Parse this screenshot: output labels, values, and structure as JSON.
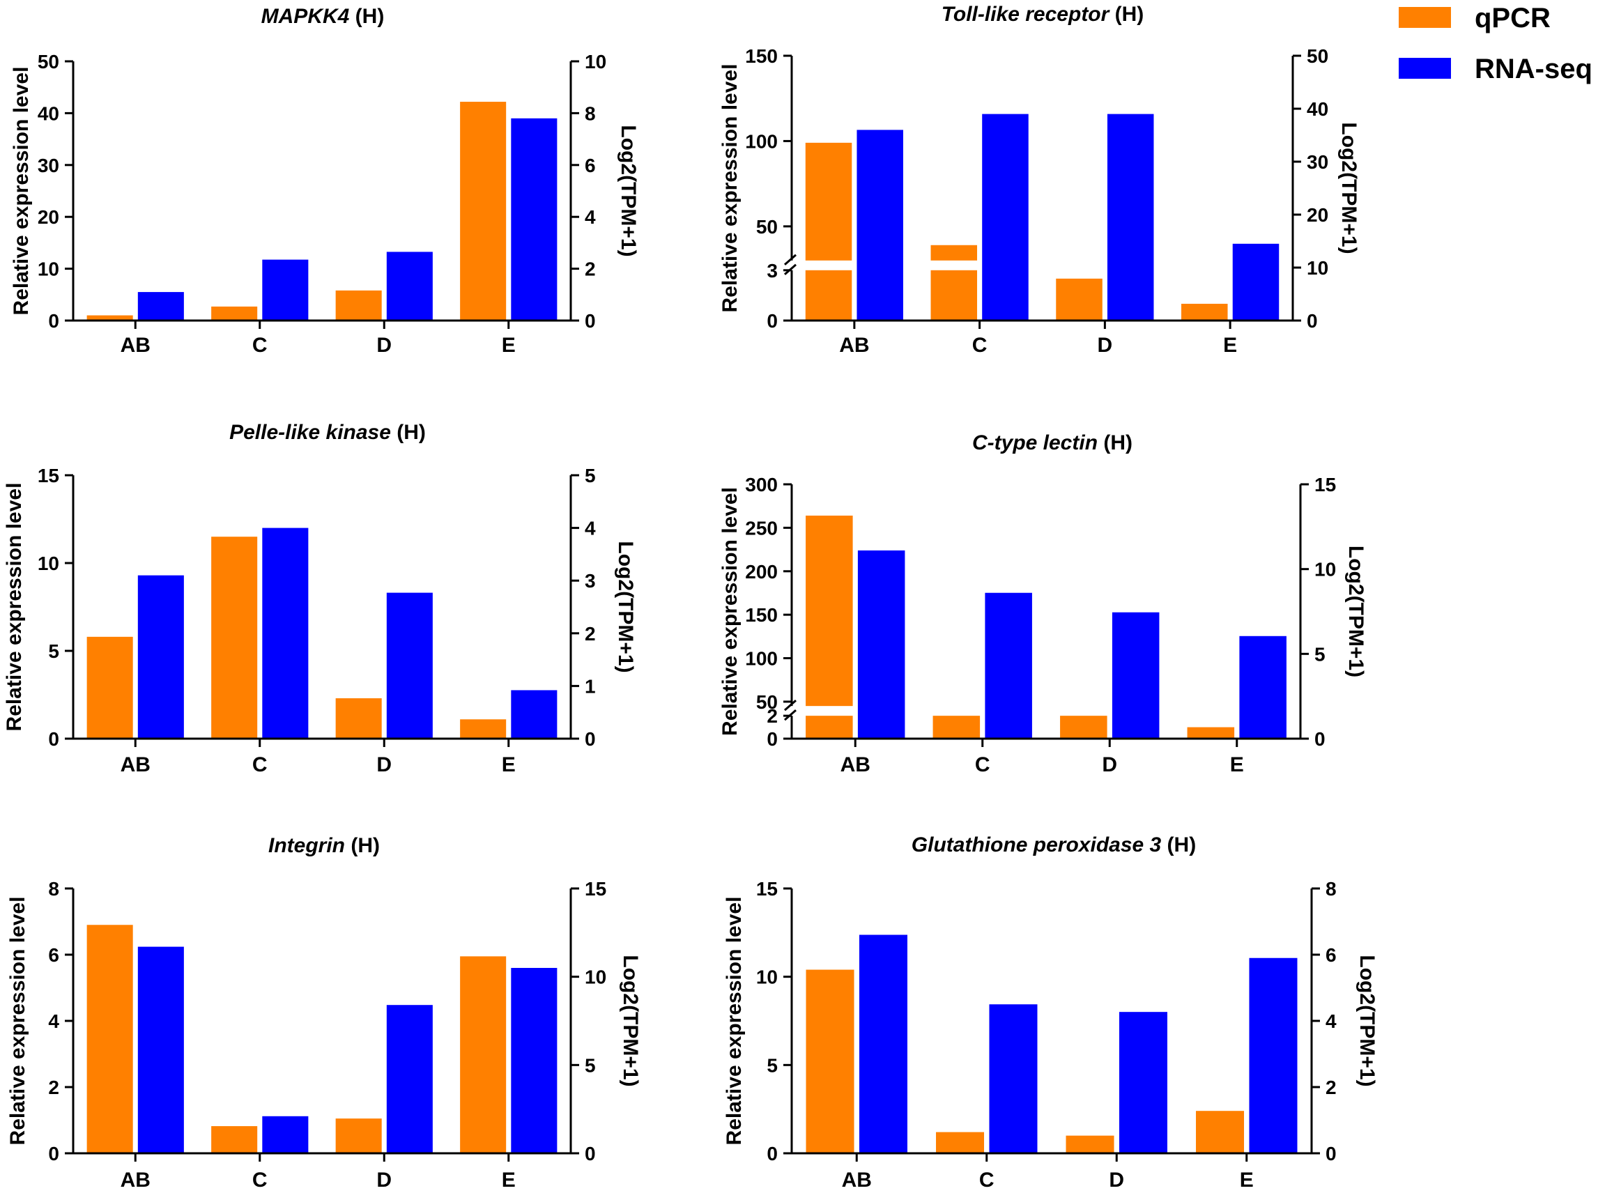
{
  "legend": [
    {
      "label": "qPCR",
      "color": "#FF8000"
    },
    {
      "label": "RNA-seq",
      "color": "#0000FF"
    }
  ],
  "chart_data": [
    {
      "type": "bar",
      "title_gene": "MAPKK4",
      "title_suffix": " (H)",
      "ylabel": "Relative expression level",
      "y2label": "Log2(TPM+1)",
      "categories": [
        "AB",
        "C",
        "D",
        "E"
      ],
      "series": [
        {
          "name": "qPCR",
          "axis": "left",
          "values": [
            1,
            2.7,
            5.8,
            42.2
          ]
        },
        {
          "name": "RNA-seq",
          "axis": "right",
          "values": [
            1.1,
            2.35,
            2.65,
            7.8
          ]
        }
      ],
      "ylim": [
        0,
        50
      ],
      "yticks": [
        0,
        10,
        20,
        30,
        40,
        50
      ],
      "y2lim": [
        0,
        10
      ],
      "y2ticks": [
        0,
        2,
        4,
        6,
        8,
        10
      ],
      "break": null
    },
    {
      "type": "bar",
      "title_gene": "Toll-like receptor",
      "title_suffix": " (H)",
      "ylabel": "Relative expression level",
      "y2label": "Log2(TPM+1)",
      "categories": [
        "AB",
        "C",
        "D",
        "E"
      ],
      "series": [
        {
          "name": "qPCR",
          "axis": "left",
          "values": [
            99,
            39,
            2.5,
            1
          ]
        },
        {
          "name": "RNA-seq",
          "axis": "right",
          "values": [
            36,
            39,
            39,
            14.5
          ]
        }
      ],
      "y2lim": [
        0,
        50
      ],
      "y2ticks": [
        0,
        10,
        20,
        30,
        40,
        50
      ],
      "break": {
        "low": [
          0,
          3
        ],
        "high": [
          30,
          150
        ],
        "lowticks": [
          0,
          3
        ],
        "highticks": [
          50,
          100,
          150
        ],
        "low_fraction": 0.19
      }
    },
    {
      "type": "bar",
      "title_gene": "Pelle-like kinase",
      "title_suffix": " (H)",
      "ylabel": "Relative expression level",
      "y2label": "Log2(TPM+1)",
      "categories": [
        "AB",
        "C",
        "D",
        "E"
      ],
      "series": [
        {
          "name": "qPCR",
          "axis": "left",
          "values": [
            5.8,
            11.5,
            2.3,
            1.1
          ]
        },
        {
          "name": "RNA-seq",
          "axis": "right",
          "values": [
            3.1,
            4.0,
            2.77,
            0.92
          ]
        }
      ],
      "ylim": [
        0,
        15
      ],
      "yticks": [
        0,
        5,
        10,
        15
      ],
      "y2lim": [
        0,
        5
      ],
      "y2ticks": [
        0,
        1,
        2,
        3,
        4,
        5
      ],
      "break": null
    },
    {
      "type": "bar",
      "title_gene": "C-type lectin",
      "title_suffix": " (H)",
      "ylabel": "Relative expression level",
      "y2label": "Log2(TPM+1)",
      "categories": [
        "AB",
        "C",
        "D",
        "E"
      ],
      "series": [
        {
          "name": "qPCR",
          "axis": "left",
          "values": [
            264,
            2,
            2,
            1
          ]
        },
        {
          "name": "RNA-seq",
          "axis": "right",
          "values": [
            11.1,
            8.6,
            7.45,
            6.05
          ]
        }
      ],
      "y2lim": [
        0,
        15
      ],
      "y2ticks": [
        0,
        5,
        10,
        15
      ],
      "break": {
        "low": [
          0,
          2
        ],
        "high": [
          45,
          300
        ],
        "lowticks": [
          0,
          2
        ],
        "highticks": [
          50,
          100,
          150,
          200,
          250,
          300
        ],
        "low_fraction": 0.09
      }
    },
    {
      "type": "bar",
      "title_gene": "Integrin",
      "title_suffix": " (H)",
      "ylabel": "Relative expression level",
      "y2label": "Log2(TPM+1)",
      "categories": [
        "AB",
        "C",
        "D",
        "E"
      ],
      "series": [
        {
          "name": "qPCR",
          "axis": "left",
          "values": [
            6.9,
            0.82,
            1.05,
            5.95
          ]
        },
        {
          "name": "RNA-seq",
          "axis": "right",
          "values": [
            11.7,
            2.1,
            8.4,
            10.5
          ]
        }
      ],
      "ylim": [
        0,
        8
      ],
      "yticks": [
        0,
        2,
        4,
        6,
        8
      ],
      "y2lim": [
        0,
        15
      ],
      "y2ticks": [
        0,
        5,
        10,
        15
      ],
      "break": null
    },
    {
      "type": "bar",
      "title_gene": "Glutathione peroxidase 3",
      "title_suffix": " (H)",
      "ylabel": "Relative expression level",
      "y2label": "Log2(TPM+1)",
      "categories": [
        "AB",
        "C",
        "D",
        "E"
      ],
      "series": [
        {
          "name": "qPCR",
          "axis": "left",
          "values": [
            10.4,
            1.2,
            1.0,
            2.4
          ]
        },
        {
          "name": "RNA-seq",
          "axis": "right",
          "values": [
            6.6,
            4.5,
            4.27,
            5.9
          ]
        }
      ],
      "ylim": [
        0,
        15
      ],
      "yticks": [
        0,
        5,
        10,
        15
      ],
      "y2lim": [
        0,
        8
      ],
      "y2ticks": [
        0,
        2,
        4,
        6,
        8
      ],
      "break": null
    }
  ]
}
